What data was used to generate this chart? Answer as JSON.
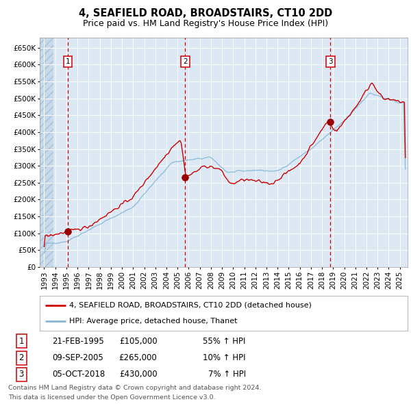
{
  "title": "4, SEAFIELD ROAD, BROADSTAIRS, CT10 2DD",
  "subtitle": "Price paid vs. HM Land Registry's House Price Index (HPI)",
  "ylim": [
    0,
    680000
  ],
  "yticks": [
    0,
    50000,
    100000,
    150000,
    200000,
    250000,
    300000,
    350000,
    400000,
    450000,
    500000,
    550000,
    600000,
    650000
  ],
  "xlim_start": 1992.6,
  "xlim_end": 2025.7,
  "background_color": "#dce9f5",
  "grid_color": "#ffffff",
  "red_line_color": "#cc0000",
  "blue_line_color": "#88b8d8",
  "dashed_vline_color": "#cc0000",
  "marker_color": "#990000",
  "sale1_date": 1995.13,
  "sale1_price": 105000,
  "sale1_label": "1",
  "sale2_date": 2005.69,
  "sale2_price": 265000,
  "sale2_label": "2",
  "sale3_date": 2018.76,
  "sale3_price": 430000,
  "sale3_label": "3",
  "legend_property": "4, SEAFIELD ROAD, BROADSTAIRS, CT10 2DD (detached house)",
  "legend_hpi": "HPI: Average price, detached house, Thanet",
  "table_rows": [
    {
      "num": "1",
      "date": "21-FEB-1995",
      "price": "£105,000",
      "change": "55% ↑ HPI"
    },
    {
      "num": "2",
      "date": "09-SEP-2005",
      "price": "£265,000",
      "change": "10% ↑ HPI"
    },
    {
      "num": "3",
      "date": "05-OCT-2018",
      "price": "£430,000",
      "change": "7% ↑ HPI"
    }
  ],
  "footer_line1": "Contains HM Land Registry data © Crown copyright and database right 2024.",
  "footer_line2": "This data is licensed under the Open Government Licence v3.0.",
  "title_fontsize": 10.5,
  "subtitle_fontsize": 9,
  "tick_fontsize": 7.5,
  "legend_fontsize": 8,
  "table_fontsize": 8.5,
  "footer_fontsize": 6.8
}
